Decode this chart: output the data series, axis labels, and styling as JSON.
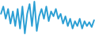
{
  "values": [
    55,
    70,
    45,
    65,
    35,
    60,
    30,
    65,
    25,
    70,
    15,
    55,
    75,
    30,
    80,
    20,
    50,
    65,
    45,
    70,
    40,
    60,
    50,
    65,
    45,
    55,
    35,
    50,
    30,
    45,
    25,
    40,
    30,
    45,
    25,
    40,
    30,
    38,
    28,
    42
  ],
  "line_color": "#2b9fd4",
  "line_width": 1.4,
  "background_color": "#ffffff"
}
